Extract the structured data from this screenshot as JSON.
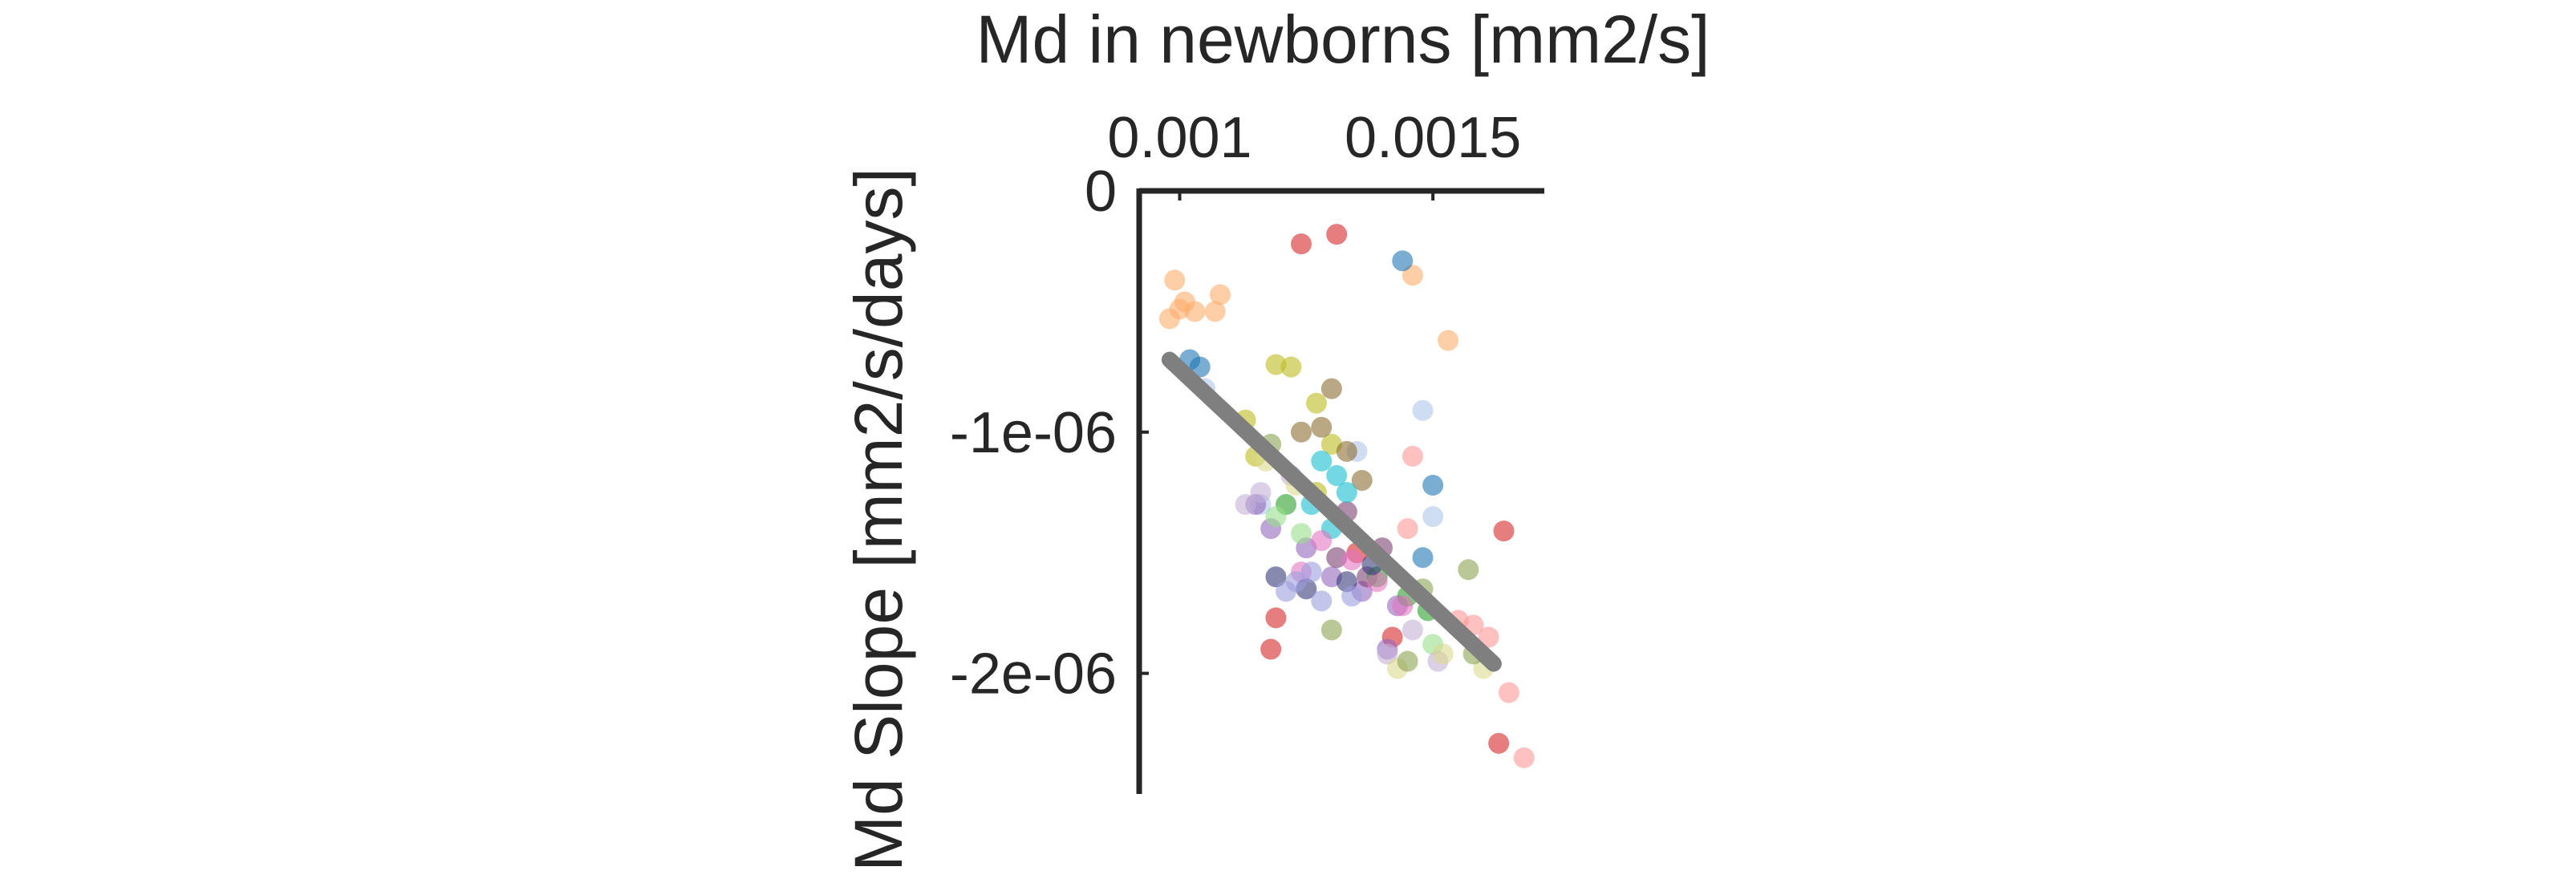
{
  "chart_data": {
    "type": "scatter",
    "title": "",
    "xlabel": "Md in newborns [mm2/s]",
    "ylabel": "Md Slope [mm2/s/days]",
    "x_axis_position": "top",
    "xlim": [
      0.00092,
      0.00172
    ],
    "ylim": [
      -2.5e-06,
      0
    ],
    "xticks": [
      {
        "value": 0.001,
        "label": "0.001"
      },
      {
        "value": 0.0015,
        "label": "0.0015"
      }
    ],
    "yticks": [
      {
        "value": 0,
        "label": "0"
      },
      {
        "value": -1e-06,
        "label": "-1e-06"
      },
      {
        "value": -2e-06,
        "label": "-2e-06"
      }
    ],
    "grid": false,
    "legend": "none",
    "fit_line": {
      "x": [
        0.00098,
        0.00162
      ],
      "y": [
        -7e-07,
        -1.96e-06
      ],
      "color": "#7f7f7f"
    },
    "palette": [
      "#fdae6b",
      "#d62728",
      "#1f77b4",
      "#aec7e8",
      "#bcbd22",
      "#8c6d31",
      "#9467bd",
      "#7b4173",
      "#17becf",
      "#2ca02c",
      "#ff9896",
      "#e377c2",
      "#393b79",
      "#98df8a",
      "#c5b0d5",
      "#9c9ede",
      "#dbdb8d",
      "#8ca252"
    ],
    "series": [
      {
        "name": "",
        "color": "#fdae6b",
        "x": [
          0.00099,
          0.00101,
          0.00098,
          0.001,
          0.00103,
          0.00108,
          0.00107,
          0.00146,
          0.00153
        ],
        "y": [
          -3.7e-07,
          -4.6e-07,
          -5.3e-07,
          -4.9e-07,
          -5e-07,
          -4.3e-07,
          -5e-07,
          -3.5e-07,
          -6.2e-07
        ]
      },
      {
        "name": "",
        "color": "#d62728",
        "x": [
          0.00124,
          0.00131,
          0.00119,
          0.00164,
          0.00163,
          0.00118,
          0.00142,
          0.00135
        ],
        "y": [
          -2.2e-07,
          -1.8e-07,
          -1.77e-06,
          -1.41e-06,
          -2.29e-06,
          -1.9e-06,
          -1.85e-06,
          -1.5e-06
        ]
      },
      {
        "name": "",
        "color": "#1f77b4",
        "x": [
          0.00102,
          0.00104,
          0.00144,
          0.0015,
          0.00148
        ],
        "y": [
          -7e-07,
          -7.3e-07,
          -2.9e-07,
          -1.22e-06,
          -1.52e-06
        ]
      },
      {
        "name": "",
        "color": "#aec7e8",
        "x": [
          0.00105,
          0.00148,
          0.0015,
          0.00116,
          0.00135
        ],
        "y": [
          -8.2e-07,
          -9.1e-07,
          -1.35e-06,
          -1.3e-06,
          -1.08e-06
        ]
      },
      {
        "name": "",
        "color": "#bcbd22",
        "x": [
          0.00119,
          0.00122,
          0.00127,
          0.00113,
          0.0013,
          0.00127,
          0.00115
        ],
        "y": [
          -7.2e-07,
          -7.3e-07,
          -8.8e-07,
          -9.5e-07,
          -1.05e-06,
          -1.25e-06,
          -1.1e-06
        ]
      },
      {
        "name": "",
        "color": "#8c6d31",
        "x": [
          0.0013,
          0.00128,
          0.00133,
          0.00136,
          0.00124
        ],
        "y": [
          -8.2e-07,
          -9.8e-07,
          -1.08e-06,
          -1.2e-06,
          -1e-06
        ]
      },
      {
        "name": "",
        "color": "#9467bd",
        "x": [
          0.00118,
          0.00125,
          0.0013,
          0.00136,
          0.00143,
          0.00141,
          0.00115
        ],
        "y": [
          -1.4e-06,
          -1.48e-06,
          -1.6e-06,
          -1.66e-06,
          -1.72e-06,
          -1.9e-06,
          -1.3e-06
        ]
      },
      {
        "name": "",
        "color": "#7b4173",
        "x": [
          0.00133,
          0.0014,
          0.00137,
          0.00131
        ],
        "y": [
          -1.33e-06,
          -1.48e-06,
          -1.6e-06,
          -1.52e-06
        ]
      },
      {
        "name": "",
        "color": "#17becf",
        "x": [
          0.00128,
          0.00131,
          0.00133,
          0.00126,
          0.0013
        ],
        "y": [
          -1.12e-06,
          -1.18e-06,
          -1.25e-06,
          -1.3e-06,
          -1.4e-06
        ]
      },
      {
        "name": "",
        "color": "#2ca02c",
        "x": [
          0.00121,
          0.00145,
          0.00149,
          0.00139
        ],
        "y": [
          -1.3e-06,
          -1.68e-06,
          -1.74e-06,
          -1.6e-06
        ]
      },
      {
        "name": "",
        "color": "#ff9896",
        "x": [
          0.00146,
          0.00158,
          0.00161,
          0.00165,
          0.00168,
          0.00155,
          0.00145
        ],
        "y": [
          -1.1e-06,
          -1.8e-06,
          -1.85e-06,
          -2.08e-06,
          -2.35e-06,
          -1.78e-06,
          -1.4e-06
        ]
      },
      {
        "name": "",
        "color": "#e377c2",
        "x": [
          0.00128,
          0.00134,
          0.00139,
          0.00144,
          0.00124
        ],
        "y": [
          -1.45e-06,
          -1.53e-06,
          -1.62e-06,
          -1.72e-06,
          -1.58e-06
        ]
      },
      {
        "name": "",
        "color": "#393b79",
        "x": [
          0.00119,
          0.00125,
          0.00133,
          0.00138
        ],
        "y": [
          -1.6e-06,
          -1.65e-06,
          -1.62e-06,
          -1.55e-06
        ]
      },
      {
        "name": "",
        "color": "#98df8a",
        "x": [
          0.00119,
          0.00124,
          0.0015
        ],
        "y": [
          -1.35e-06,
          -1.42e-06,
          -1.88e-06
        ]
      },
      {
        "name": "",
        "color": "#c5b0d5",
        "x": [
          0.00113,
          0.00122,
          0.00146,
          0.00151,
          0.00116,
          0.00141
        ],
        "y": [
          -1.3e-06,
          -1.18e-06,
          -1.82e-06,
          -1.95e-06,
          -1.25e-06,
          -1.92e-06
        ]
      },
      {
        "name": "",
        "color": "#9c9ede",
        "x": [
          0.00123,
          0.00128,
          0.00134,
          0.00126,
          0.00121
        ],
        "y": [
          -1.62e-06,
          -1.7e-06,
          -1.68e-06,
          -1.58e-06,
          -1.66e-06
        ]
      },
      {
        "name": "",
        "color": "#dbdb8d",
        "x": [
          0.00117,
          0.00123,
          0.00143,
          0.0016,
          0.00152
        ],
        "y": [
          -1.12e-06,
          -1.22e-06,
          -1.98e-06,
          -1.98e-06,
          -1.92e-06
        ]
      },
      {
        "name": "",
        "color": "#8ca252",
        "x": [
          0.00118,
          0.0013,
          0.00148,
          0.00145,
          0.00157,
          0.00158
        ],
        "y": [
          -1.05e-06,
          -1.82e-06,
          -1.65e-06,
          -1.95e-06,
          -1.57e-06,
          -1.92e-06
        ]
      }
    ]
  }
}
